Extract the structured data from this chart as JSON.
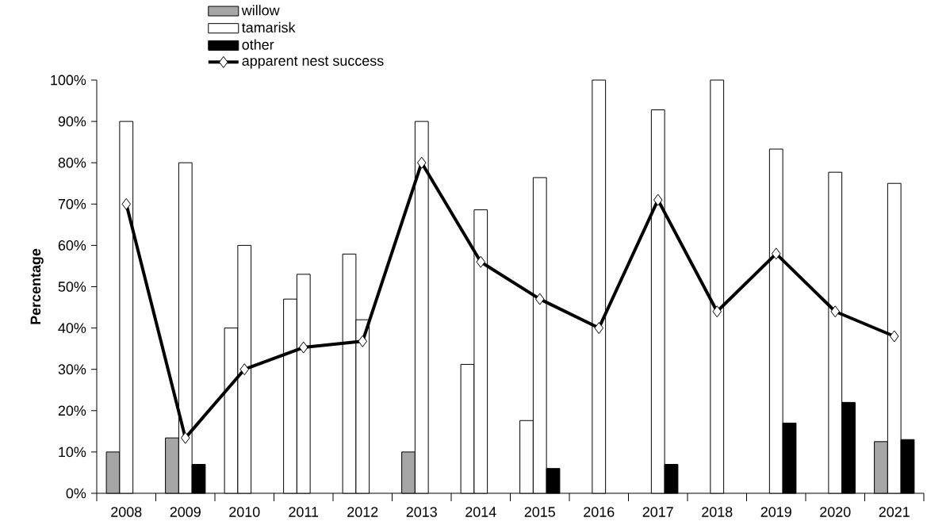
{
  "chart_data": {
    "type": "bar",
    "ylabel": "Percentage",
    "categories": [
      "2008",
      "2009",
      "2010",
      "2011",
      "2012",
      "2013",
      "2014",
      "2015",
      "2016",
      "2017",
      "2018",
      "2019",
      "2020",
      "2021"
    ],
    "series": [
      {
        "name": "willow",
        "color": "#a6a6a6",
        "colors": [
          "#a6a6a6",
          "#a6a6a6",
          "#ffffff",
          "#ffffff",
          "#ffffff",
          "#a6a6a6",
          "#ffffff",
          "#ffffff",
          "#a6a6a6",
          "#a6a6a6",
          "#a6a6a6",
          "#a6a6a6",
          "#a6a6a6",
          "#a6a6a6"
        ],
        "values": [
          10,
          13.4,
          40,
          47,
          57.9,
          10,
          31.2,
          17.6,
          null,
          null,
          null,
          null,
          null,
          12.5
        ]
      },
      {
        "name": "tamarisk",
        "color": "#ffffff",
        "values": [
          90,
          80,
          60,
          53,
          42,
          90,
          68.6,
          76.4,
          100,
          92.8,
          100,
          83.3,
          77.7,
          75
        ]
      },
      {
        "name": "other",
        "color": "#000000",
        "values": [
          null,
          7,
          null,
          null,
          null,
          null,
          null,
          6,
          null,
          7,
          null,
          17,
          22,
          13
        ]
      },
      {
        "name": "apparent nest success",
        "type": "line",
        "color": "#000000",
        "marker": "diamond",
        "line_style": "solid",
        "values": [
          70,
          13.4,
          30,
          35.3,
          36.8,
          80,
          56,
          47,
          40,
          71,
          44,
          58,
          44,
          38
        ]
      }
    ],
    "ylim": [
      0,
      100
    ],
    "yticks": [
      {
        "value": 0,
        "label": "0%"
      },
      {
        "value": 10,
        "label": "10%"
      },
      {
        "value": 20,
        "label": "20%"
      },
      {
        "value": 30,
        "label": "30%"
      },
      {
        "value": 40,
        "label": "40%"
      },
      {
        "value": 50,
        "label": "50%"
      },
      {
        "value": 60,
        "label": "60%"
      },
      {
        "value": 70,
        "label": "70%"
      },
      {
        "value": 80,
        "label": "80%"
      },
      {
        "value": 90,
        "label": "90%"
      },
      {
        "value": 100,
        "label": "100%"
      }
    ],
    "grid": false,
    "legend": "top left"
  }
}
